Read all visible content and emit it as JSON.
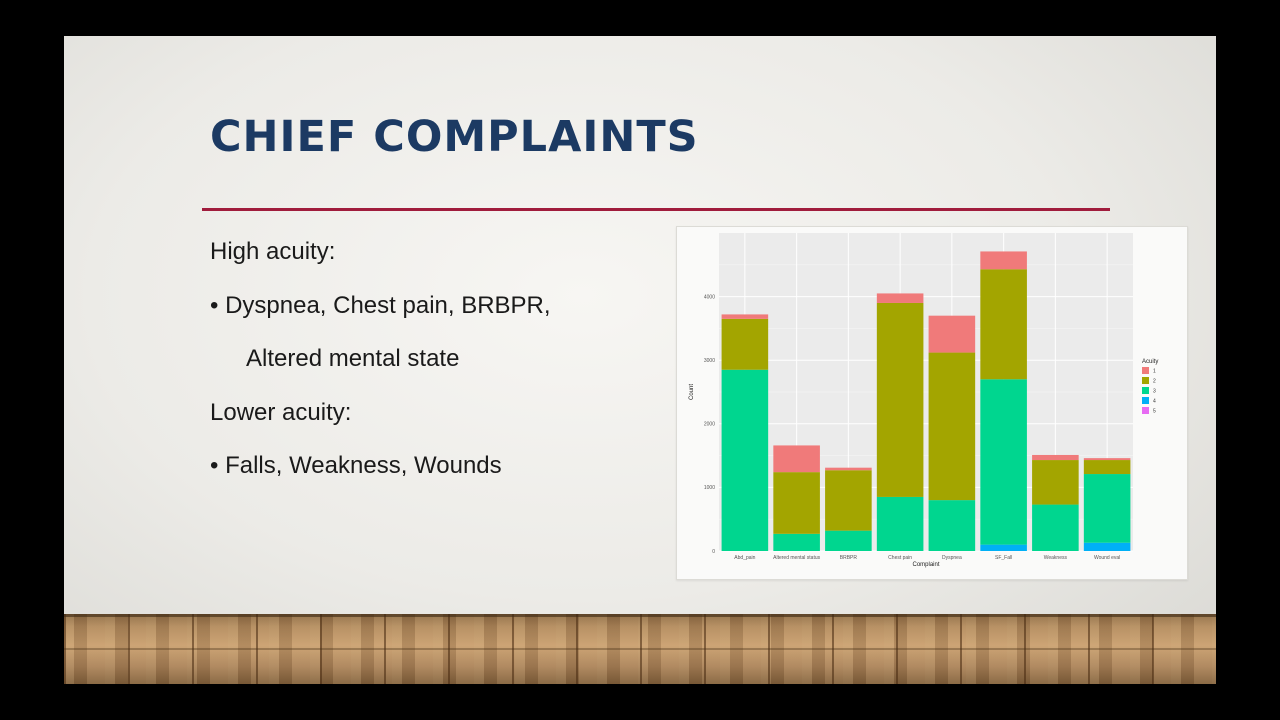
{
  "slide": {
    "title": "CHIEF COMPLAINTS",
    "colors": {
      "title": "#1c3a63",
      "rule": "#a01c3c"
    },
    "bullets": {
      "high_heading": "High acuity:",
      "high_item": "• Dyspnea, Chest pain, BRBPR,",
      "high_item_cont": "Altered mental state",
      "low_heading": "Lower acuity:",
      "low_item": "• Falls, Weakness, Wounds"
    }
  },
  "chart_data": {
    "type": "bar",
    "stacked": true,
    "xlabel": "Complaint",
    "ylabel": "Count",
    "ylim": [
      0,
      5000
    ],
    "yticks": [
      0,
      1000,
      2000,
      3000,
      4000
    ],
    "grid": true,
    "legend_position": "right",
    "legend_title": "Acuity",
    "categories": [
      "Abd_pain",
      "Altered mental status",
      "BRBPR",
      "Chest pain",
      "Dyspnea",
      "SF_Fall",
      "Weakness",
      "Wound eval"
    ],
    "series": [
      {
        "name": "5",
        "color": "#e76bf3",
        "values": [
          0,
          0,
          0,
          0,
          0,
          0,
          0,
          0
        ]
      },
      {
        "name": "4",
        "color": "#00b0f6",
        "values": [
          0,
          0,
          0,
          0,
          0,
          100,
          0,
          130
        ]
      },
      {
        "name": "3",
        "color": "#00d68f",
        "values": [
          2850,
          270,
          320,
          850,
          800,
          2600,
          730,
          1080
        ]
      },
      {
        "name": "2",
        "color": "#a3a500",
        "values": [
          800,
          970,
          950,
          3050,
          2320,
          1730,
          700,
          220
        ]
      },
      {
        "name": "1",
        "color": "#f07a7a",
        "values": [
          70,
          420,
          40,
          150,
          580,
          280,
          80,
          30
        ]
      }
    ]
  }
}
